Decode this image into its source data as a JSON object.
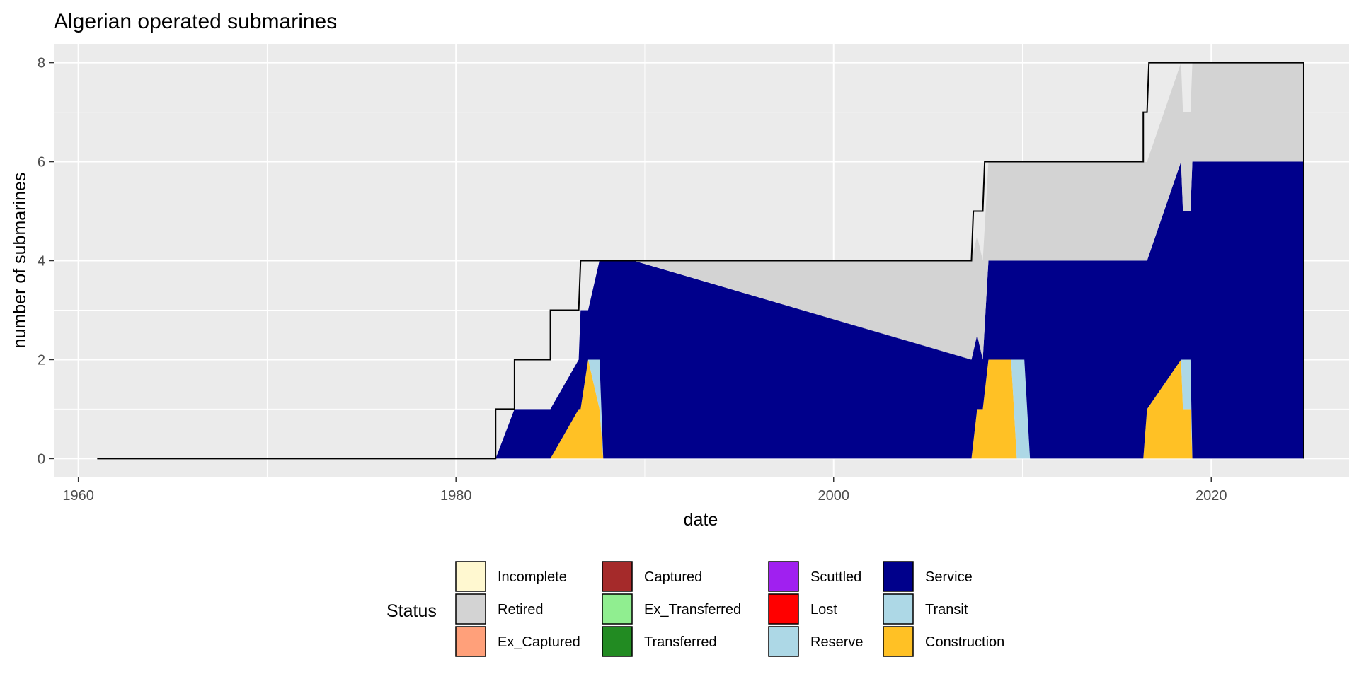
{
  "chart_data": {
    "type": "area",
    "stacked": true,
    "title": "Algerian operated submarines",
    "xlabel": "date",
    "ylabel": "number of submarines",
    "xlim": [
      1958.7,
      2027.3
    ],
    "ylim": [
      -0.38,
      8.38
    ],
    "x_ticks": [
      1960,
      1980,
      2000,
      2020
    ],
    "x_tick_labels": [
      "1960",
      "1980",
      "2000",
      "2020"
    ],
    "y_ticks": [
      0,
      2,
      4,
      6,
      8
    ],
    "y_tick_labels": [
      "0",
      "2",
      "4",
      "6",
      "8"
    ],
    "grid": true,
    "panel_background": "#ebebeb",
    "legend": {
      "title": "Status",
      "position": "bottom",
      "entries": [
        {
          "label": "Incomplete",
          "color": "#fff8d0"
        },
        {
          "label": "Retired",
          "color": "#d3d3d3"
        },
        {
          "label": "Ex_Captured",
          "color": "#ffa07a"
        },
        {
          "label": "Captured",
          "color": "#a52a2a"
        },
        {
          "label": "Ex_Transferred",
          "color": "#90ee90"
        },
        {
          "label": "Transferred",
          "color": "#228b22"
        },
        {
          "label": "Scuttled",
          "color": "#a020f0"
        },
        {
          "label": "Lost",
          "color": "#ff0000"
        },
        {
          "label": "Reserve",
          "color": "#add8e6"
        },
        {
          "label": "Service",
          "color": "#00008b"
        },
        {
          "label": "Transit",
          "color": "#add8e6"
        },
        {
          "label": "Construction",
          "color": "#ffc125"
        }
      ]
    },
    "series": [
      {
        "name": "Construction",
        "color": "#ffc125",
        "points": [
          [
            1961,
            0
          ],
          [
            1985.0,
            0
          ],
          [
            1985.0,
            1
          ],
          [
            1986.6,
            1
          ],
          [
            1986.6,
            2
          ],
          [
            1987.0,
            2
          ],
          [
            1987.0,
            1
          ],
          [
            1987.6,
            1
          ],
          [
            1987.8,
            0
          ],
          [
            2007.3,
            0
          ],
          [
            2007.3,
            1
          ],
          [
            2007.9,
            1
          ],
          [
            2007.9,
            2
          ],
          [
            2009.4,
            2
          ],
          [
            2009.7,
            0
          ],
          [
            2016.4,
            0
          ],
          [
            2016.4,
            1
          ],
          [
            2016.6,
            1
          ],
          [
            2016.6,
            2
          ],
          [
            2018.4,
            2
          ],
          [
            2018.5,
            1
          ],
          [
            2018.9,
            1
          ],
          [
            2019.0,
            0
          ],
          [
            2024.9,
            0
          ]
        ]
      },
      {
        "name": "Transit",
        "color": "#add8e6",
        "points": [
          [
            1961,
            0
          ],
          [
            1987.0,
            0
          ],
          [
            1987.0,
            1
          ],
          [
            1987.6,
            1
          ],
          [
            1987.8,
            0
          ],
          [
            2009.4,
            0
          ],
          [
            2009.7,
            2
          ],
          [
            2010.1,
            2
          ],
          [
            2010.4,
            0
          ],
          [
            2018.4,
            0
          ],
          [
            2018.5,
            1
          ],
          [
            2018.9,
            1
          ],
          [
            2019.0,
            0
          ],
          [
            2024.9,
            0
          ]
        ]
      },
      {
        "name": "Service",
        "color": "#00008b",
        "points": [
          [
            1961,
            0
          ],
          [
            1982.1,
            0
          ],
          [
            1982.1,
            1
          ],
          [
            1983.1,
            1
          ],
          [
            1983.1,
            2
          ],
          [
            1985.0,
            1
          ],
          [
            1986.5,
            1
          ],
          [
            1986.6,
            2
          ],
          [
            1987.0,
            1
          ],
          [
            1987.6,
            2
          ],
          [
            1987.8,
            4
          ],
          [
            1989.4,
            4
          ],
          [
            1989.4,
            2
          ],
          [
            2007.3,
            2
          ],
          [
            2007.3,
            2
          ],
          [
            2007.9,
            1
          ],
          [
            2007.9,
            2
          ],
          [
            2009.4,
            2
          ],
          [
            2010.1,
            2
          ],
          [
            2010.4,
            4
          ],
          [
            2016.4,
            4
          ],
          [
            2016.4,
            4
          ],
          [
            2016.6,
            3
          ],
          [
            2016.6,
            4
          ],
          [
            2018.4,
            4
          ],
          [
            2018.5,
            3
          ],
          [
            2018.9,
            3
          ],
          [
            2019.0,
            6
          ],
          [
            2024.9,
            6
          ]
        ]
      },
      {
        "name": "Retired",
        "color": "#d3d3d3",
        "points": [
          [
            1961,
            0
          ],
          [
            1989.4,
            0
          ],
          [
            1989.4,
            2
          ],
          [
            2007.3,
            2
          ],
          [
            2007.3,
            2
          ],
          [
            2007.6,
            2
          ],
          [
            2007.6,
            2
          ],
          [
            2008.2,
            2
          ],
          [
            2008.2,
            2
          ],
          [
            2016.4,
            2
          ],
          [
            2016.4,
            2
          ],
          [
            2016.6,
            2
          ],
          [
            2016.6,
            2
          ],
          [
            2024.9,
            2
          ]
        ]
      }
    ],
    "total_outline": [
      [
        1961,
        0
      ],
      [
        1982.1,
        0
      ],
      [
        1982.1,
        1
      ],
      [
        1983.1,
        1
      ],
      [
        1983.1,
        2
      ],
      [
        1985.0,
        2
      ],
      [
        1985.0,
        3
      ],
      [
        1986.5,
        3
      ],
      [
        1986.6,
        4
      ],
      [
        1989.4,
        4
      ],
      [
        2007.3,
        4
      ],
      [
        2007.4,
        5
      ],
      [
        2007.9,
        5
      ],
      [
        2008.0,
        6
      ],
      [
        2016.4,
        6
      ],
      [
        2016.4,
        7
      ],
      [
        2016.6,
        7
      ],
      [
        2016.7,
        8
      ],
      [
        2024.9,
        8
      ],
      [
        2024.9,
        0
      ]
    ]
  }
}
